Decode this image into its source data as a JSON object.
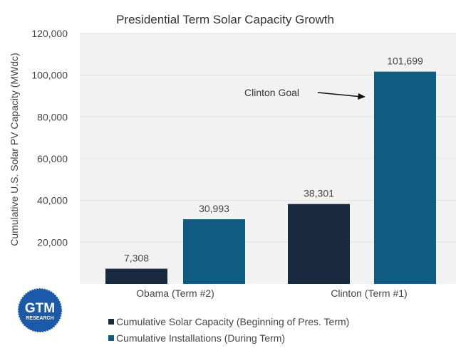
{
  "chart_data": {
    "type": "bar",
    "title": "Presidential Term Solar Capacity Growth",
    "xlabel": "",
    "ylabel": "Cumulative U.S. Solar PV Capacity (MWdc)",
    "ylim": [
      0,
      120000
    ],
    "yticks": [
      20000,
      40000,
      60000,
      80000,
      100000,
      120000
    ],
    "ytick_labels": [
      "20,000",
      "40,000",
      "60,000",
      "80,000",
      "100,000",
      "120,000"
    ],
    "categories": [
      "Obama (Term #2)",
      "Clinton (Term #1)"
    ],
    "series": [
      {
        "name": "Cumulative Solar Capacity (Beginning of Pres. Term)",
        "values": [
          7308,
          38301
        ],
        "labels": [
          "7,308",
          "38,301"
        ],
        "color": "#1a2a3e"
      },
      {
        "name": "Cumulative Installations (During Term)",
        "values": [
          30993,
          101699
        ],
        "labels": [
          "30,993",
          "101,699"
        ],
        "color": "#0f5b82"
      }
    ],
    "annotation": {
      "text": "Clinton Goal",
      "arrow": "right"
    },
    "grid": true,
    "legend": "bottom",
    "plot_background": "#f2f2f2"
  },
  "logo": {
    "line1": "GTM",
    "line2": "RESEARCH",
    "color": "#1a5aa8"
  }
}
